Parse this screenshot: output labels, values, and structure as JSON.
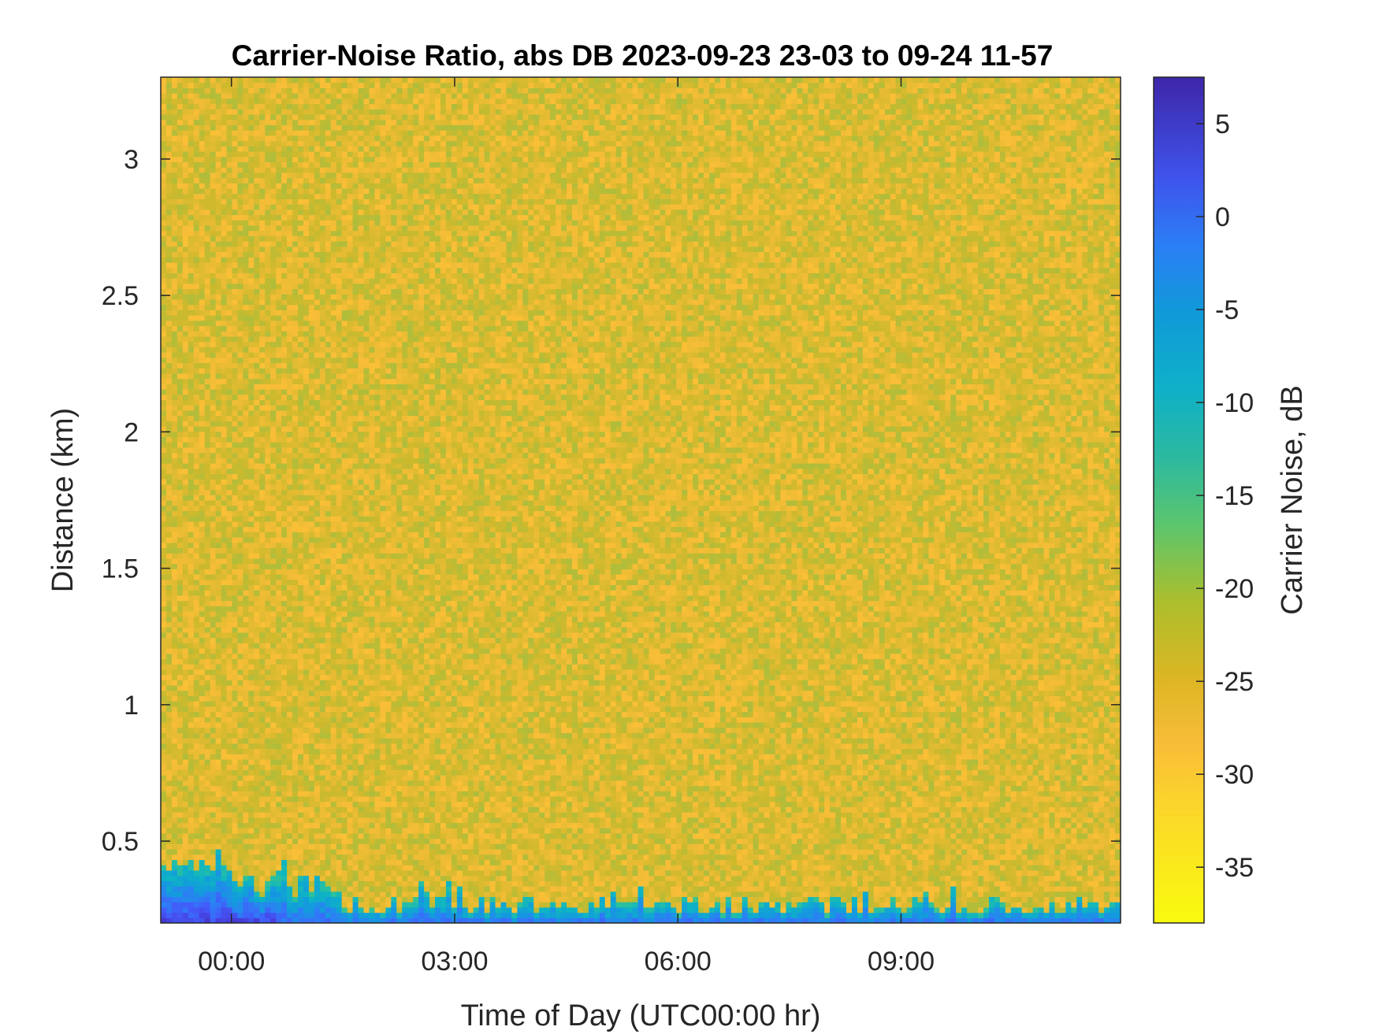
{
  "chart_data": {
    "type": "heatmap",
    "title": "Carrier-Noise Ratio, abs DB 2023-09-23 23-03 to 09-24 11-57",
    "xlabel": "Time of Day (UTC00:00 hr)",
    "ylabel": "Distance (km)",
    "colorbar_label": "Carrier Noise, dB",
    "x_ticks": [
      "00:00",
      "03:00",
      "06:00",
      "09:00"
    ],
    "x_tick_hours": [
      0,
      3,
      6,
      9
    ],
    "xlim_hours": [
      -0.95,
      11.95
    ],
    "y_ticks": [
      "0.5",
      "1",
      "1.5",
      "2",
      "2.5",
      "3"
    ],
    "y_tick_values": [
      0.5,
      1,
      1.5,
      2,
      2.5,
      3
    ],
    "ylim": [
      0.2,
      3.3
    ],
    "colorbar_ticks": [
      "5",
      "0",
      "-5",
      "-10",
      "-15",
      "-20",
      "-25",
      "-30",
      "-35"
    ],
    "colorbar_tick_values": [
      5,
      0,
      -5,
      -10,
      -15,
      -20,
      -25,
      -30,
      -35
    ],
    "clim": [
      -38,
      7.5
    ],
    "colormap": "parula",
    "grid": false,
    "background_level_db": -30,
    "near_range_strong_return_db": [
      -20,
      5
    ],
    "near_range_top_km": [
      0.23,
      0.43
    ],
    "colors": {
      "background": "#f9bd38",
      "near_range": "#2a6bf0",
      "max": "#3e26a8"
    }
  }
}
